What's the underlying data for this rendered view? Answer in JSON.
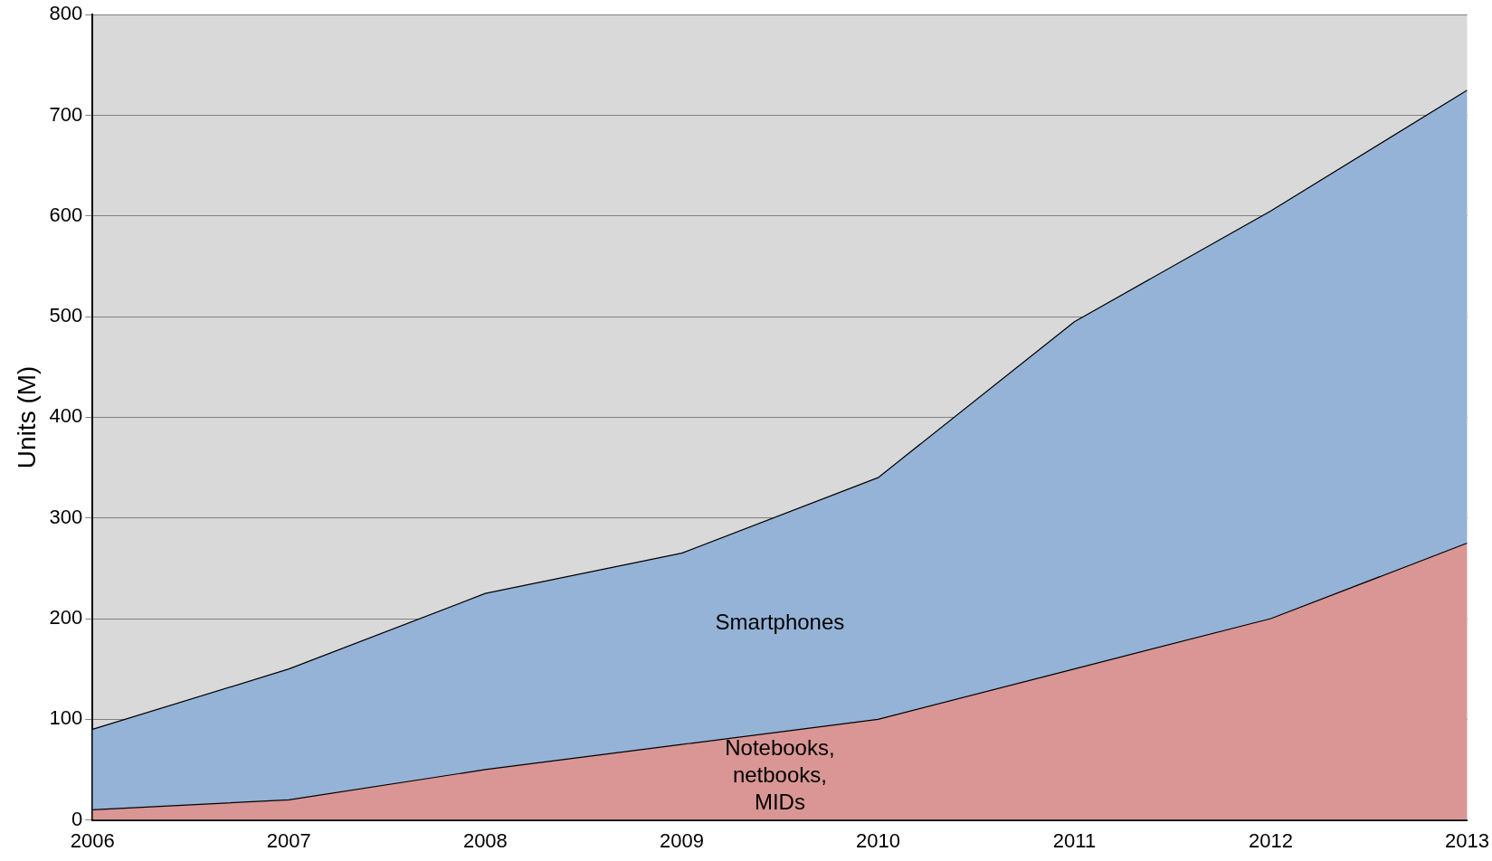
{
  "chart_data": {
    "type": "area",
    "stacked": true,
    "ylabel": "Units (M)",
    "x": [
      2006,
      2007,
      2008,
      2009,
      2010,
      2011,
      2012,
      2013
    ],
    "xlim": [
      2006,
      2013
    ],
    "xticks": [
      2006,
      2007,
      2008,
      2009,
      2010,
      2011,
      2012,
      2013
    ],
    "ylim": [
      0,
      800
    ],
    "yticks": [
      0,
      100,
      200,
      300,
      400,
      500,
      600,
      700,
      800
    ],
    "grid": "y",
    "legend": false,
    "series": [
      {
        "name": "Notebooks, netbooks, MIDs",
        "color": "#d99694",
        "values": [
          10,
          20,
          50,
          75,
          100,
          150,
          200,
          275
        ]
      },
      {
        "name": "Smartphones",
        "color": "#95b3d7",
        "values": [
          80,
          130,
          175,
          190,
          240,
          345,
          405,
          450
        ]
      }
    ]
  }
}
